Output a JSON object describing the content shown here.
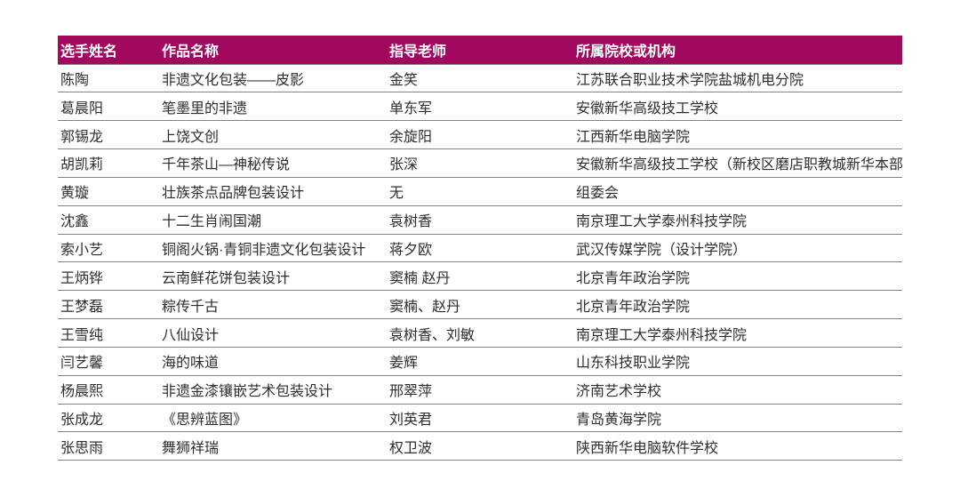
{
  "page": {
    "background_color": "#FFFFFF"
  },
  "table": {
    "header_bg_color": "#A3085F",
    "header_text_color": "#FFFFFF",
    "body_text_color": "#2E2E2E",
    "divider_color": "#848484",
    "columns": [
      "选手姓名",
      "作品名称",
      "指导老师",
      "所属院校或机构"
    ],
    "rows": [
      [
        "陈陶",
        "非遗文化包装——皮影",
        "金笑",
        "江苏联合职业技术学院盐城机电分院"
      ],
      [
        "葛晨阳",
        "笔墨里的非遗",
        "单东军",
        "安徽新华高级技工学校"
      ],
      [
        "郭锡龙",
        "上饶文创",
        "余旋阳",
        "江西新华电脑学院"
      ],
      [
        "胡凯莉",
        "千年茶山—神秘传说",
        "张深",
        "安徽新华高级技工学校（新校区磨店职教城新华本部"
      ],
      [
        "黄璇",
        "壮族茶点品牌包装设计",
        "无",
        "组委会"
      ],
      [
        "沈鑫",
        "十二生肖闹国潮",
        "袁树香",
        "南京理工大学泰州科技学院"
      ],
      [
        "索小艺",
        "铜阁火锅·青铜非遗文化包装设计",
        "蒋夕欧",
        "武汉传媒学院（设计学院）"
      ],
      [
        "王炳铧",
        "云南鲜花饼包装设计",
        "窦楠 赵丹",
        "北京青年政治学院"
      ],
      [
        "王梦磊",
        "粽传千古",
        "窦楠、赵丹",
        "北京青年政治学院"
      ],
      [
        "王雪纯",
        "八仙设计",
        "袁树香、刘敏",
        "南京理工大学泰州科技学院"
      ],
      [
        "闫艺馨",
        "海的味道",
        "姜辉",
        "山东科技职业学院"
      ],
      [
        "杨晨熙",
        "非遗金漆镶嵌艺术包装设计",
        "邢翠萍",
        "济南艺术学校"
      ],
      [
        "张成龙",
        "《思辨蓝图》",
        "刘英君",
        "青岛黄海学院"
      ],
      [
        "张思雨",
        "舞狮祥瑞",
        "权卫波",
        "陕西新华电脑软件学校"
      ]
    ]
  }
}
